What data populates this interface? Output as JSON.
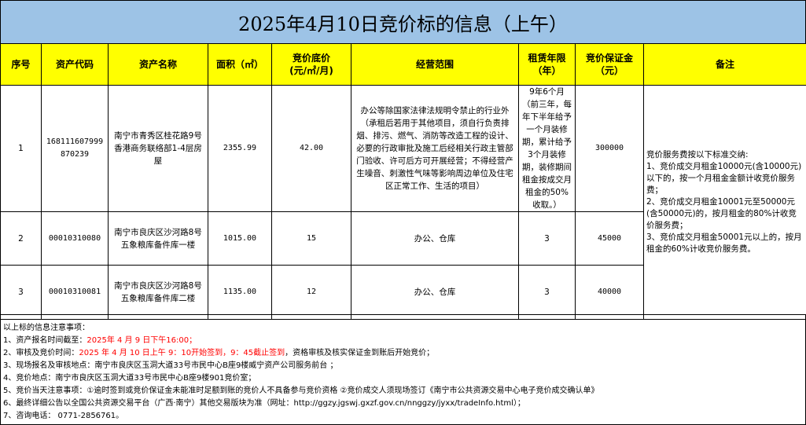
{
  "title": "2025年4月10日竞价标的信息（上午）",
  "headers": [
    "序号",
    "资产代码",
    "资产名称",
    "面积（㎡）",
    "竞价底价\n(元/㎡/月)",
    "经营范围",
    "租赁年限\n（年）",
    "竞价保证金\n（元）",
    "备注"
  ],
  "rows": [
    {
      "no": "1",
      "code": "168111607999870239",
      "name": "南宁市青秀区桂花路9号香港商务联络部1-4层房屋",
      "area": "2355.99",
      "price": "42.00",
      "scope": "办公等除国家法律法规明令禁止的行业外（承租后若用于其他项目，须自行负责排烟、排污、燃气、消防等改造工程的设计、必要的行政审批及施工后经相关行政主管部门验收、许可后方可开展经营；不得经营产生噪音、刺激性气味等影响周边单位及住宅区正常工作、生活的项目）",
      "term": "9年6个月（前三年，每年下半年给予一个月装修期，累计给予3个月装修期，装修期间租金按成交月租金的50%收取。）",
      "deposit": "300000"
    },
    {
      "no": "2",
      "code": "00010310080",
      "name": "南宁市良庆区沙河路8号五象粮库备件库一楼",
      "area": "1015.00",
      "price": "15",
      "scope": "办公、仓库",
      "term": "3",
      "deposit": "45000"
    },
    {
      "no": "3",
      "code": "00010310081",
      "name": "南宁市良庆区沙河路8号五象粮库备件库二楼",
      "area": "1135.00",
      "price": "12",
      "scope": "办公、仓库",
      "term": "3",
      "deposit": "40000"
    }
  ],
  "remark": "竞价服务费按以下标准交纳:\n1、竞价成交月租金10000元(含10000元)以下的，按一个月租金金额计收竞价服务费；\n2、竞价成交月租金10001元至50000元(含50000元)的，按月租金的80%计收竞价服务费；\n3、竞价成交月租金50001元以上的，按月租金的60%计收竞价服务费。",
  "notes": {
    "heading": "以上标的信息注意事项：",
    "n1_label": "1、资产报名时间截至：",
    "n1_red": "2025年 4 月 9 日下午16:00；",
    "n2_label": "2、审核及竞价时间：",
    "n2_red": "2025 年 4 月 10 日上午 9：10开始签到，9：45截止签到",
    "n2_rest": "，资格审核及核实保证金到账后开始竞价；",
    "n3": "3、现场报名及审核地点：南宁市良庆区玉洞大道33号市民中心B座9楼威宁资产公司服务前台 ；",
    "n4": "4、竞价地点：南宁市良庆区玉洞大道33号市民中心B座9楼901竞价室；",
    "n5": "5、竞价当天注意事项：①逾时签到或竞价保证金未能准时足额到账的竞价人不具备参与竞价资格 ②竞价成交人须现场签订《南宁市公共资源交易中心电子竞价成交确认单》",
    "n6": "6、最终详细公告以全国公共资源交易平台（广西·南宁）其他交易版块为准（网址：http://ggzy.jgswj.gxzf.gov.cn/nnggzy/jyxx/tradeInfo.html）；",
    "n7": "7、咨询电话： 0771-2856761。"
  },
  "colors": {
    "title_bg": "#9dc3e6",
    "header_bg": "#ffff00",
    "highlight": "#ff0000"
  }
}
